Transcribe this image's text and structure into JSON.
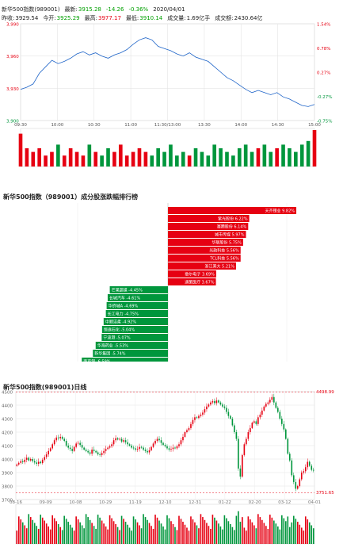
{
  "header": {
    "name": "新华500指数(989001)",
    "latest_label": "最新:",
    "latest": "3915.28",
    "change": "-14.26",
    "pct": "-0.36%",
    "date": "2020/04/01",
    "prev_label": "昨收:",
    "prev": "3929.54",
    "open_label": "今开:",
    "open": "3925.29",
    "high_label": "最高:",
    "high": "3977.17",
    "low_label": "最低:",
    "low": "3910.14",
    "vol_label": "成交量:",
    "vol": "1.69亿手",
    "amt_label": "成交额:",
    "amt": "2430.64亿"
  },
  "ranking_title": "新华500指数（989001）成分股涨跌幅排行榜",
  "kline_title": "新华500指数(989001)日线",
  "colors": {
    "up": "#e60012",
    "down": "#00963c",
    "line": "#1e64c8",
    "grid": "#e4e4e4"
  },
  "chart_data": [
    {
      "type": "line",
      "name": "intraday",
      "y_left_ticks": [
        "3,990",
        "3,960",
        "3,930",
        "3,900"
      ],
      "y_right_ticks": [
        "1.54%",
        "0.78%",
        "0.27%",
        "-0.27%",
        "-0.75%"
      ],
      "x_ticks": [
        "09:30",
        "10:00",
        "10:30",
        "11:00",
        "11:30/13:00",
        "13:30",
        "14:00",
        "14:30",
        "15:00"
      ],
      "ylim": [
        3900,
        3990
      ],
      "points": [
        3929,
        3931,
        3934,
        3944,
        3950,
        3956,
        3953,
        3955,
        3958,
        3962,
        3964,
        3961,
        3963,
        3960,
        3958,
        3961,
        3963,
        3966,
        3971,
        3975,
        3977,
        3975,
        3969,
        3967,
        3965,
        3962,
        3960,
        3963,
        3959,
        3957,
        3955,
        3950,
        3945,
        3940,
        3937,
        3933,
        3929,
        3926,
        3928,
        3926,
        3924,
        3926,
        3922,
        3920,
        3917,
        3914,
        3913,
        3915
      ],
      "volumes": [
        9,
        5,
        4,
        5,
        3,
        4,
        6,
        3,
        5,
        4,
        3,
        6,
        4,
        3,
        5,
        4,
        6,
        3,
        4,
        5,
        4,
        3,
        5,
        4,
        6,
        3,
        4,
        3,
        5,
        4,
        3,
        6,
        5,
        4,
        3,
        5,
        6,
        4,
        5,
        6,
        4,
        5,
        6,
        5,
        4,
        6,
        7,
        10
      ]
    },
    {
      "type": "bar",
      "name": "constituent-ranking",
      "gainers": [
        {
          "name": "天齐锂业",
          "pct": "9.82%",
          "value": 9.82
        },
        {
          "name": "紫光股份",
          "pct": "6.22%",
          "value": 6.22
        },
        {
          "name": "赛腾股份",
          "pct": "6.14%",
          "value": 6.14
        },
        {
          "name": "城市传媒",
          "pct": "5.97%",
          "value": 5.97
        },
        {
          "name": "华联股份",
          "pct": "5.75%",
          "value": 5.75
        },
        {
          "name": "光韵科技",
          "pct": "5.56%",
          "value": 5.56
        },
        {
          "name": "TCL科技",
          "pct": "5.56%",
          "value": 5.56
        },
        {
          "name": "浙江美大",
          "pct": "5.21%",
          "value": 5.21
        },
        {
          "name": "歌尔电子",
          "pct": "3.69%",
          "value": 3.69
        },
        {
          "name": "通策医疗",
          "pct": "3.67%",
          "value": 3.67
        }
      ],
      "losers": [
        {
          "name": "芒果超媒",
          "pct": "-4.45%",
          "value": -4.45
        },
        {
          "name": "长城汽车",
          "pct": "-4.61%",
          "value": -4.61
        },
        {
          "name": "华侨城A",
          "pct": "-4.69%",
          "value": -4.69
        },
        {
          "name": "长江电力",
          "pct": "-4.75%",
          "value": -4.75
        },
        {
          "name": "中顺洁柔",
          "pct": "-4.92%",
          "value": -4.92
        },
        {
          "name": "恒逸石化",
          "pct": "-5.04%",
          "value": -5.04
        },
        {
          "name": "宁波港",
          "pct": "-5.07%",
          "value": -5.07
        },
        {
          "name": "华海药业",
          "pct": "-5.53%",
          "value": -5.53
        },
        {
          "name": "新华集团",
          "pct": "-5.74%",
          "value": -5.74
        },
        {
          "name": "南京银",
          "pct": "-6.59%",
          "value": -6.59
        }
      ]
    },
    {
      "type": "candlestick",
      "name": "daily-k",
      "y_ticks": [
        "4500",
        "4400",
        "4300",
        "4200",
        "4100",
        "4000",
        "3900",
        "3800",
        "3700"
      ],
      "ylim": [
        3700,
        4500
      ],
      "x_ticks": [
        "08-16",
        "09-09",
        "10-08",
        "10-29",
        "11-19",
        "12-10",
        "12-31",
        "01-22",
        "02-20",
        "03-12",
        "04-01"
      ],
      "max_label": "4498.99",
      "min_label": "3751.65",
      "closes": [
        3960,
        3972,
        3985,
        3978,
        3995,
        4010,
        3990,
        4000,
        3985,
        3975,
        3965,
        3980,
        3970,
        3995,
        4015,
        4035,
        4060,
        4080,
        4110,
        4140,
        4160,
        4155,
        4165,
        4150,
        4135,
        4100,
        4085,
        4075,
        4060,
        4090,
        4115,
        4120,
        4105,
        4085,
        4070,
        4060,
        4050,
        4040,
        4070,
        4060,
        4050,
        4035,
        4030,
        4045,
        4060,
        4075,
        4085,
        4095,
        4110,
        4140,
        4155,
        4145,
        4150,
        4130,
        4140,
        4125,
        4110,
        4100,
        4085,
        4080,
        4070,
        4075,
        4090,
        4085,
        4070,
        4060,
        4050,
        4065,
        4090,
        4115,
        4135,
        4150,
        4140,
        4120,
        4105,
        4095,
        4080,
        4070,
        4075,
        4085,
        4080,
        4095,
        4110,
        4140,
        4165,
        4200,
        4215,
        4230,
        4260,
        4290,
        4310,
        4305,
        4320,
        4330,
        4345,
        4370,
        4390,
        4405,
        4420,
        4430,
        4415,
        4435,
        4420,
        4405,
        4390,
        4380,
        4350,
        4320,
        4300,
        4250,
        4200,
        4150,
        3930,
        3870,
        4030,
        4110,
        4150,
        4200,
        4230,
        4270,
        4280,
        4260,
        4310,
        4330,
        4360,
        4390,
        4410,
        4420,
        4440,
        4460,
        4420,
        4380,
        4350,
        4300,
        4260,
        4220,
        4150,
        4040,
        3990,
        3880,
        3830,
        3780,
        3800,
        3850,
        3900,
        3910,
        3940,
        3980,
        3950,
        3920,
        3915
      ]
    }
  ]
}
